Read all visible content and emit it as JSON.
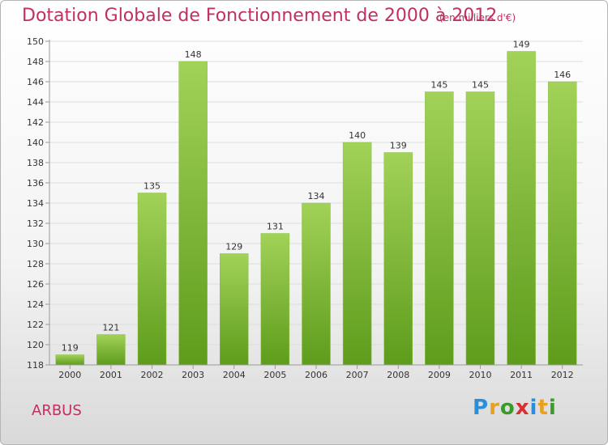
{
  "title": "Dotation Globale de Fonctionnement de 2000 à 2012",
  "unit_note": "(en milliers d'€)",
  "commune": "ARBUS",
  "logo": {
    "letters": [
      "P",
      "r",
      "o",
      "x",
      "i",
      "t",
      "i"
    ],
    "colors": [
      "#2a8fd8",
      "#e8a020",
      "#3a9a2a",
      "#d83030",
      "#2a8fd8",
      "#e8a020",
      "#3a9a2a"
    ]
  },
  "colors": {
    "bar_top": "#a2d258",
    "bar_bottom": "#5e9c1c",
    "accent": "#c03060",
    "axis": "#999999",
    "grid": "#dddddd"
  },
  "chart_data": {
    "type": "bar",
    "categories": [
      "2000",
      "2001",
      "2002",
      "2003",
      "2004",
      "2005",
      "2006",
      "2007",
      "2008",
      "2009",
      "2010",
      "2011",
      "2012"
    ],
    "values": [
      119,
      121,
      135,
      148,
      129,
      131,
      134,
      140,
      139,
      145,
      145,
      149,
      146
    ],
    "data_labels": [
      "119",
      "121",
      "135",
      "148",
      "129",
      "131",
      "134",
      "140",
      "139",
      "145",
      "145",
      "149",
      "146"
    ],
    "ylim": [
      118,
      150
    ],
    "yticks": [
      "118",
      "120",
      "122",
      "124",
      "126",
      "128",
      "130",
      "132",
      "134",
      "136",
      "138",
      "140",
      "142",
      "144",
      "146",
      "148",
      "150"
    ],
    "grid": true,
    "xlabel": "",
    "ylabel": ""
  }
}
